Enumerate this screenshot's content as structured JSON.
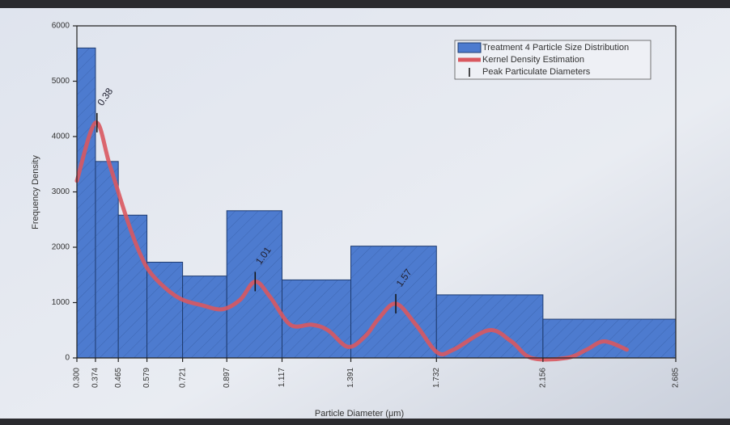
{
  "chart_data": {
    "type": "histogram",
    "name": "Treatment 4 Particle Size Distribution",
    "xlabel": "Particle Diameter (μm)",
    "ylabel": "Frequency Density",
    "bins": [
      0.3,
      0.374,
      0.465,
      0.579,
      0.721,
      0.897,
      1.117,
      1.391,
      1.732,
      2.156,
      2.685
    ],
    "values": [
      5600,
      3550,
      2580,
      1730,
      1480,
      2660,
      1410,
      2020,
      1140,
      700
    ],
    "color": "#4d7bcf",
    "xlim": [
      0.3,
      2.685
    ],
    "ylim": [
      0,
      6000
    ],
    "xticks": [
      {
        "value": 0.3,
        "label": "0.300"
      },
      0.374,
      0.465,
      0.579,
      0.721,
      0.897,
      1.117,
      1.391,
      1.732,
      2.156,
      2.685
    ],
    "yticks": [
      0,
      1000,
      2000,
      3000,
      4000,
      5000,
      6000
    ],
    "kde": {
      "name": "Kernel Density Estimation",
      "color": "#d9585f",
      "x": [
        0.3,
        0.374,
        0.43,
        0.5,
        0.55,
        0.6,
        0.7,
        0.8,
        0.88,
        0.95,
        1.01,
        1.07,
        1.15,
        1.235,
        1.3,
        1.38,
        1.45,
        1.5,
        1.57,
        1.65,
        1.735,
        1.8,
        1.94,
        2.03,
        2.11,
        2.25,
        2.33,
        2.4,
        2.49
      ],
      "values": [
        3200,
        4250,
        3500,
        2500,
        1900,
        1500,
        1100,
        950,
        880,
        1050,
        1380,
        1100,
        600,
        600,
        500,
        200,
        400,
        700,
        980,
        600,
        100,
        150,
        500,
        300,
        0,
        0,
        150,
        300,
        150
      ]
    },
    "peaks": {
      "name": "Peak Particulate Diameters",
      "x": [
        0.38,
        1.01,
        1.57
      ],
      "values": [
        4250,
        1380,
        980
      ]
    },
    "legend": "upper right"
  }
}
